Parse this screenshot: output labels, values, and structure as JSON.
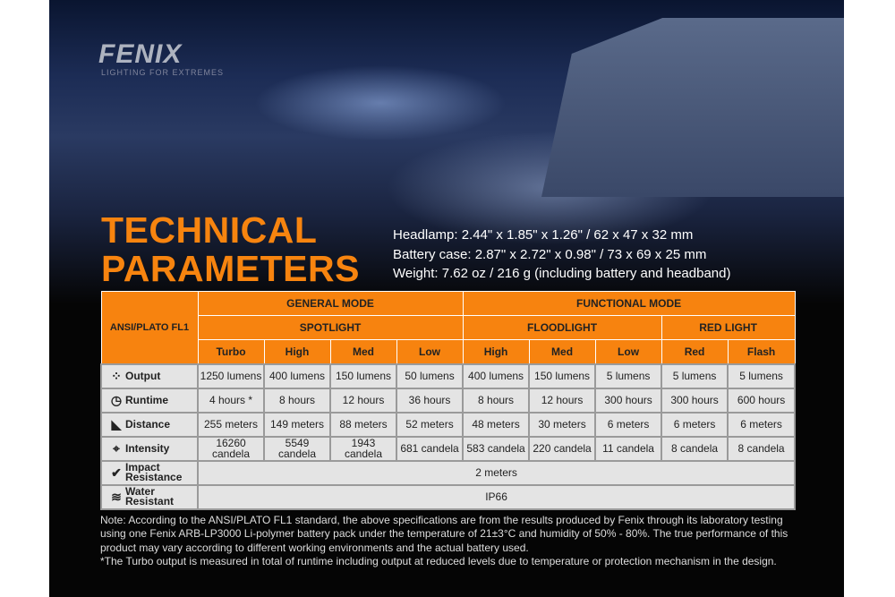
{
  "brand": {
    "logo": "FENIX",
    "tagline": "LIGHTING FOR EXTREMES"
  },
  "title": {
    "line1": "TECHNICAL",
    "line2": "PARAMETERS"
  },
  "dimensions": [
    "Headlamp: 2.44\" x 1.85\" x 1.26\" / 62 x 47 x 32 mm",
    "Battery case: 2.87\" x 2.72\" x 0.98\" / 73 x 69 x 25 mm",
    "Weight: 7.62 oz / 216 g (including battery and headband)"
  ],
  "table": {
    "corner": "ANSI/PLATO FL1",
    "groups": [
      "GENERAL MODE",
      "FUNCTIONAL MODE"
    ],
    "subgroups": [
      "SPOTLIGHT",
      "FLOODLIGHT",
      "RED LIGHT"
    ],
    "modes": [
      "Turbo",
      "High",
      "Med",
      "Low",
      "High",
      "Med",
      "Low",
      "Red",
      "Flash"
    ],
    "rows": [
      {
        "label": "Output",
        "icon": "light-burst-icon",
        "values": [
          "1250 lumens",
          "400 lumens",
          "150 lumens",
          "50 lumens",
          "400 lumens",
          "150 lumens",
          "5 lumens",
          "5 lumens",
          "5 lumens"
        ]
      },
      {
        "label": "Runtime",
        "icon": "clock-icon",
        "values": [
          "4 hours *",
          "8 hours",
          "12 hours",
          "36 hours",
          "8 hours",
          "12 hours",
          "300 hours",
          "300 hours",
          "600 hours"
        ]
      },
      {
        "label": "Distance",
        "icon": "beam-distance-icon",
        "values": [
          "255 meters",
          "149 meters",
          "88 meters",
          "52 meters",
          "48 meters",
          "30 meters",
          "6 meters",
          "6 meters",
          "6 meters"
        ]
      },
      {
        "label": "Intensity",
        "icon": "crosshair-icon",
        "values": [
          "16260 candela",
          "5549 candela",
          "1943 candela",
          "681 candela",
          "583 candela",
          "220 candela",
          "11 candela",
          "8 candela",
          "8 candela"
        ]
      }
    ],
    "impact": {
      "label1": "Impact",
      "label2": "Resistance",
      "icon": "impact-check-icon",
      "value": "2 meters"
    },
    "water": {
      "label1": "Water",
      "label2": "Resistant",
      "icon": "water-waves-icon",
      "value": "IP66"
    }
  },
  "notes": [
    "Note: According to the ANSI/PLATO FL1 standard, the above specifications are from the results produced by Fenix through its laboratory testing using one Fenix ARB-LP3000 Li-polymer battery pack under the temperature of 21±3°C and humidity of 50% - 80%. The true performance of this product may vary according to different working environments and the actual battery used.",
    "*The Turbo output is measured in total of runtime including output at reduced levels due to temperature or protection mechanism in the design."
  ],
  "colors": {
    "accent": "#f7830f",
    "cell": "#e4e4e4",
    "background": "#050505"
  }
}
